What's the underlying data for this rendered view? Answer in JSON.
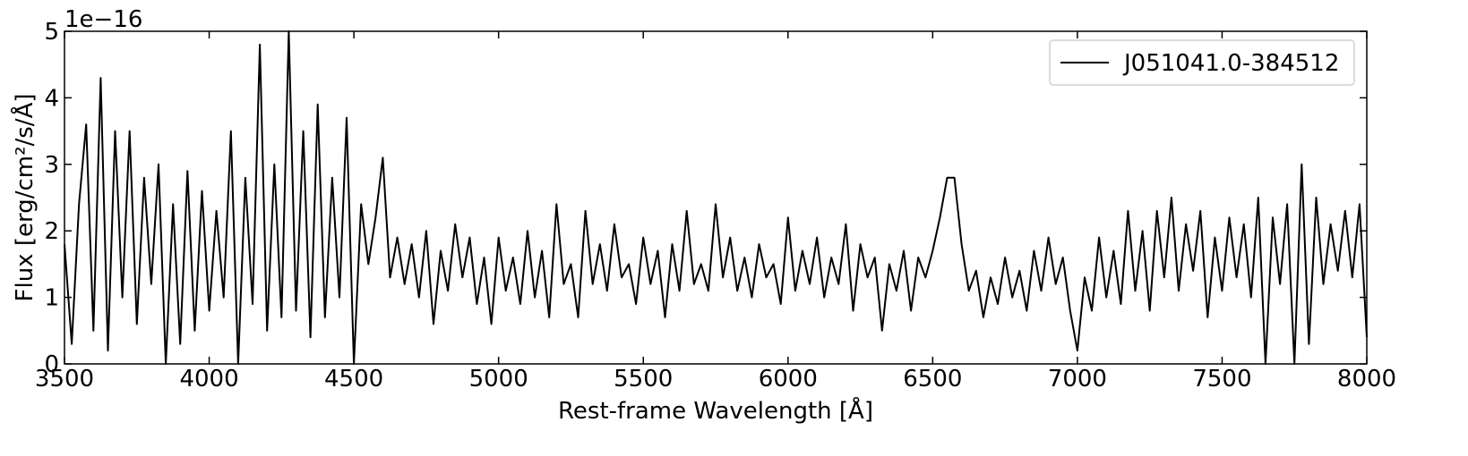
{
  "chart_data": {
    "type": "line",
    "offset_label": "1e−16",
    "xlabel": "Rest-frame Wavelength [Å]",
    "ylabel": "Flux [erg/cm²/s/Å]",
    "xlim": [
      3500,
      8000
    ],
    "xticks": [
      3500,
      4000,
      4500,
      5000,
      5500,
      6000,
      6500,
      7000,
      7500,
      8000
    ],
    "ylim": [
      0,
      5
    ],
    "yticks": [
      0,
      1,
      2,
      3,
      4,
      5
    ],
    "legend": "upper right",
    "grid": false,
    "x": [
      3500,
      3525,
      3550,
      3575,
      3600,
      3625,
      3650,
      3675,
      3700,
      3725,
      3750,
      3775,
      3800,
      3825,
      3850,
      3875,
      3900,
      3925,
      3950,
      3975,
      4000,
      4025,
      4050,
      4075,
      4100,
      4125,
      4150,
      4175,
      4200,
      4225,
      4250,
      4275,
      4300,
      4325,
      4350,
      4375,
      4400,
      4425,
      4450,
      4475,
      4500,
      4525,
      4550,
      4575,
      4600,
      4625,
      4650,
      4675,
      4700,
      4725,
      4750,
      4775,
      4800,
      4825,
      4850,
      4875,
      4900,
      4925,
      4950,
      4975,
      5000,
      5025,
      5050,
      5075,
      5100,
      5125,
      5150,
      5175,
      5200,
      5225,
      5250,
      5275,
      5300,
      5325,
      5350,
      5375,
      5400,
      5425,
      5450,
      5475,
      5500,
      5525,
      5550,
      5575,
      5600,
      5625,
      5650,
      5675,
      5700,
      5725,
      5750,
      5775,
      5800,
      5825,
      5850,
      5875,
      5900,
      5925,
      5950,
      5975,
      6000,
      6025,
      6050,
      6075,
      6100,
      6125,
      6150,
      6175,
      6200,
      6225,
      6250,
      6275,
      6300,
      6325,
      6350,
      6375,
      6400,
      6425,
      6450,
      6475,
      6500,
      6525,
      6550,
      6575,
      6600,
      6625,
      6650,
      6675,
      6700,
      6725,
      6750,
      6775,
      6800,
      6825,
      6850,
      6875,
      6900,
      6925,
      6950,
      6975,
      7000,
      7025,
      7050,
      7075,
      7100,
      7125,
      7150,
      7175,
      7200,
      7225,
      7250,
      7275,
      7300,
      7325,
      7350,
      7375,
      7400,
      7425,
      7450,
      7475,
      7500,
      7525,
      7550,
      7575,
      7600,
      7625,
      7650,
      7675,
      7700,
      7725,
      7750,
      7775,
      7800,
      7825,
      7850,
      7875,
      7900,
      7925,
      7950,
      7975,
      8000
    ],
    "series": [
      {
        "name": "J051041.0-384512",
        "color": "#000000",
        "values": [
          1.8,
          0.3,
          2.4,
          3.6,
          0.5,
          4.3,
          0.2,
          3.5,
          1.0,
          3.5,
          0.6,
          2.8,
          1.2,
          3.0,
          0.0,
          2.4,
          0.3,
          2.9,
          0.5,
          2.6,
          0.8,
          2.3,
          1.0,
          3.5,
          0.0,
          2.8,
          0.9,
          4.8,
          0.5,
          3.0,
          0.7,
          5.0,
          0.8,
          3.5,
          0.4,
          3.9,
          0.7,
          2.8,
          1.0,
          3.7,
          0.0,
          2.4,
          1.5,
          2.2,
          3.1,
          1.3,
          1.9,
          1.2,
          1.8,
          1.0,
          2.0,
          0.6,
          1.7,
          1.1,
          2.1,
          1.3,
          1.9,
          0.9,
          1.6,
          0.6,
          1.9,
          1.1,
          1.6,
          0.9,
          2.0,
          1.0,
          1.7,
          0.7,
          2.4,
          1.2,
          1.5,
          0.7,
          2.3,
          1.2,
          1.8,
          1.1,
          2.1,
          1.3,
          1.5,
          0.9,
          1.9,
          1.2,
          1.7,
          0.7,
          1.8,
          1.1,
          2.3,
          1.2,
          1.5,
          1.1,
          2.4,
          1.3,
          1.9,
          1.1,
          1.6,
          1.0,
          1.8,
          1.3,
          1.5,
          0.9,
          2.2,
          1.1,
          1.7,
          1.2,
          1.9,
          1.0,
          1.6,
          1.2,
          2.1,
          0.8,
          1.8,
          1.3,
          1.6,
          0.5,
          1.5,
          1.1,
          1.7,
          0.8,
          1.6,
          1.3,
          1.7,
          2.2,
          2.8,
          2.8,
          1.8,
          1.1,
          1.4,
          0.7,
          1.3,
          0.9,
          1.6,
          1.0,
          1.4,
          0.8,
          1.7,
          1.1,
          1.9,
          1.2,
          1.6,
          0.8,
          0.2,
          1.3,
          0.8,
          1.9,
          1.0,
          1.7,
          0.9,
          2.3,
          1.1,
          2.0,
          0.8,
          2.3,
          1.3,
          2.5,
          1.1,
          2.1,
          1.4,
          2.3,
          0.7,
          1.9,
          1.1,
          2.2,
          1.3,
          2.1,
          1.0,
          2.5,
          0.0,
          2.2,
          1.2,
          2.4,
          0.0,
          3.0,
          0.3,
          2.5,
          1.2,
          2.1,
          1.4,
          2.3,
          1.3,
          2.4,
          0.4
        ]
      }
    ]
  }
}
